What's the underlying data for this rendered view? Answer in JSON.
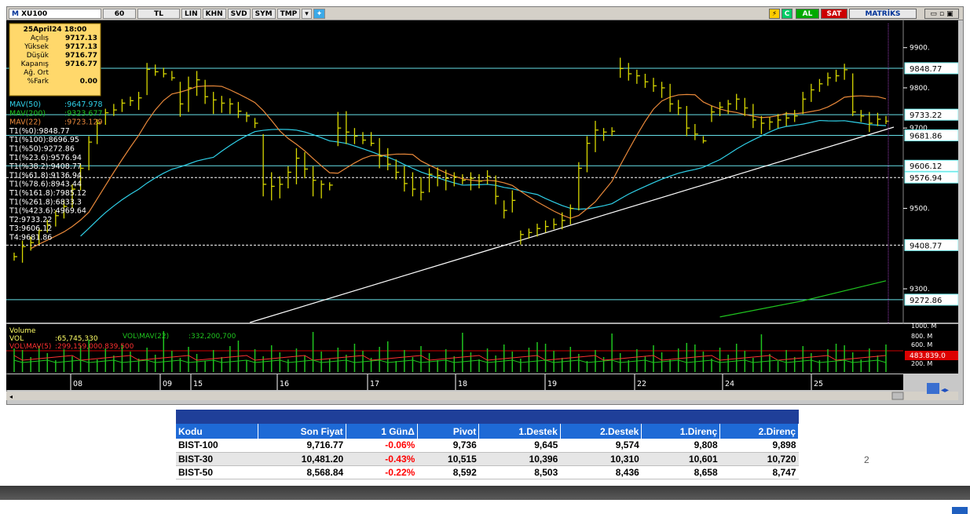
{
  "toolbar": {
    "symbol": "XU100",
    "period": "60",
    "unit": "TL",
    "buttons": [
      "LIN",
      "KHN",
      "SVD",
      "SYM",
      "TMP"
    ],
    "al": "AL",
    "sat": "SAT",
    "brand": "MATRİKS"
  },
  "info_box": {
    "date": "25April24 18:00",
    "rows": [
      {
        "label": "Açılış",
        "value": "9717.13"
      },
      {
        "label": "Yüksek",
        "value": "9717.13"
      },
      {
        "label": "Düşük",
        "value": "9716.77"
      },
      {
        "label": "Kapanış",
        "value": "9716.77"
      },
      {
        "label": "Ağ. Ort",
        "value": ""
      },
      {
        "label": "%Fark",
        "value": "0.00"
      }
    ]
  },
  "indicators": [
    {
      "text": "MAV(50)",
      "value": ":9647.978",
      "color": "#2fd0e8"
    },
    {
      "text": "MAV(200)",
      "value": ":9323.677",
      "color": "#1fc41f"
    },
    {
      "text": "MAV(22)",
      "value": ":9723.129",
      "color": "#e8883a"
    },
    {
      "text": "T1(%0):9848.77",
      "value": "",
      "color": "#ffffff"
    },
    {
      "text": "T1(%100):8696.95",
      "value": "",
      "color": "#ffffff"
    },
    {
      "text": "T1(%50):9272.86",
      "value": "",
      "color": "#ffffff"
    },
    {
      "text": "T1(%23.6):9576.94",
      "value": "",
      "color": "#ffffff"
    },
    {
      "text": "T1(%38.2):9408.77",
      "value": "",
      "color": "#ffffff"
    },
    {
      "text": "T1(%61.8):9136.94",
      "value": "",
      "color": "#ffffff"
    },
    {
      "text": "T1(%78.6):8943.44",
      "value": "",
      "color": "#ffffff"
    },
    {
      "text": "T1(%161.8):7985.12",
      "value": "",
      "color": "#ffffff"
    },
    {
      "text": "T1(%261.8):6833.3",
      "value": "",
      "color": "#ffffff"
    },
    {
      "text": "T1(%423.6):4969.64",
      "value": "",
      "color": "#ffffff"
    },
    {
      "text": "T2:9733.22",
      "value": "",
      "color": "#ffffff"
    },
    {
      "text": "T3:9606.12",
      "value": "",
      "color": "#ffffff"
    },
    {
      "text": "T4:9681.86",
      "value": "",
      "color": "#ffffff"
    }
  ],
  "price_axis_labels": [
    "9900.",
    "9800.",
    "9700.",
    "9500.",
    "9300."
  ],
  "price_axis_values": [
    9900,
    9800,
    9700,
    9500,
    9300
  ],
  "price_tags": [
    {
      "label": "9848.77",
      "value": 9848.77
    },
    {
      "label": "9733.22",
      "value": 9733.22
    },
    {
      "label": "9681.86",
      "value": 9681.86
    },
    {
      "label": "9606.12",
      "value": 9606.12
    },
    {
      "label": "9576.94",
      "value": 9576.94
    },
    {
      "label": "9408.77",
      "value": 9408.77
    },
    {
      "label": "9272.86",
      "value": 9272.86
    }
  ],
  "volume_panel": {
    "title": "Volume",
    "vol_label": "VOL",
    "vol_value": ":65,745,330",
    "volmav22_label": "VOL\\MAV(22)",
    "volmav22_value": ":332,200,700",
    "volmav5_label": "VOL\\MAV(5)",
    "volmav5_value": ":299,159,000.839,500",
    "axis_labels": [
      "1000. M",
      "800. M",
      "600. M",
      "200. M"
    ],
    "tag": "483.839.0"
  },
  "date_axis": [
    "08",
    "09",
    "15",
    "16",
    "17",
    "18",
    "19",
    "22",
    "24",
    "25"
  ],
  "colors": {
    "background": "#000000",
    "candle": "#d8d800",
    "mav50": "#2fd0e8",
    "mav200": "#1fc41f",
    "mav22": "#e8883a",
    "fib_line": "#66e0e8",
    "trendline": "#ffffff",
    "tag_bg": "#7fffff",
    "info_bg": "#ffd86b"
  },
  "chart_data": {
    "type": "candlestick",
    "title": "XU100",
    "ylim": [
      9220,
      9960
    ],
    "x_labels": [
      "08",
      "09",
      "15",
      "16",
      "17",
      "18",
      "19",
      "22",
      "24",
      "25"
    ],
    "bars": [
      {
        "h": 9390,
        "l": 9370,
        "c": 9380
      },
      {
        "h": 9420,
        "l": 9365,
        "c": 9405
      },
      {
        "h": 9430,
        "l": 9395,
        "c": 9415
      },
      {
        "h": 9450,
        "l": 9410,
        "c": 9445
      },
      {
        "h": 9472,
        "l": 9440,
        "c": 9460
      },
      {
        "h": 9495,
        "l": 9455,
        "c": 9482
      },
      {
        "h": 9520,
        "l": 9475,
        "c": 9505
      },
      {
        "h": 9560,
        "l": 9500,
        "c": 9548
      },
      {
        "h": 9610,
        "l": 9545,
        "c": 9600
      },
      {
        "h": 9680,
        "l": 9595,
        "c": 9665
      },
      {
        "h": 9722,
        "l": 9660,
        "c": 9712
      },
      {
        "h": 9748,
        "l": 9708,
        "c": 9738
      },
      {
        "h": 9760,
        "l": 9730,
        "c": 9745
      },
      {
        "h": 9772,
        "l": 9740,
        "c": 9762
      },
      {
        "h": 9778,
        "l": 9755,
        "c": 9768
      },
      {
        "h": 9790,
        "l": 9745,
        "c": 9775
      },
      {
        "h": 9862,
        "l": 9782,
        "c": 9846
      },
      {
        "h": 9858,
        "l": 9830,
        "c": 9840
      },
      {
        "h": 9850,
        "l": 9826,
        "c": 9835
      },
      {
        "h": 9842,
        "l": 9818,
        "c": 9825
      },
      {
        "h": 9815,
        "l": 9728,
        "c": 9760
      },
      {
        "h": 9828,
        "l": 9740,
        "c": 9800
      },
      {
        "h": 9842,
        "l": 9780,
        "c": 9820
      },
      {
        "h": 9820,
        "l": 9760,
        "c": 9778
      },
      {
        "h": 9790,
        "l": 9735,
        "c": 9770
      },
      {
        "h": 9780,
        "l": 9738,
        "c": 9762
      },
      {
        "h": 9774,
        "l": 9735,
        "c": 9760
      },
      {
        "h": 9765,
        "l": 9725,
        "c": 9742
      },
      {
        "h": 9740,
        "l": 9715,
        "c": 9730
      },
      {
        "h": 9725,
        "l": 9700,
        "c": 9712
      },
      {
        "h": 9685,
        "l": 9530,
        "c": 9560
      },
      {
        "h": 9590,
        "l": 9520,
        "c": 9555
      },
      {
        "h": 9580,
        "l": 9525,
        "c": 9560
      },
      {
        "h": 9605,
        "l": 9550,
        "c": 9590
      },
      {
        "h": 9650,
        "l": 9560,
        "c": 9625
      },
      {
        "h": 9640,
        "l": 9575,
        "c": 9598
      },
      {
        "h": 9605,
        "l": 9530,
        "c": 9570
      },
      {
        "h": 9570,
        "l": 9525,
        "c": 9560
      },
      {
        "h": 9565,
        "l": 9545,
        "c": 9558
      },
      {
        "h": 9740,
        "l": 9655,
        "c": 9700
      },
      {
        "h": 9742,
        "l": 9660,
        "c": 9690
      },
      {
        "h": 9700,
        "l": 9660,
        "c": 9680
      },
      {
        "h": 9690,
        "l": 9660,
        "c": 9670
      },
      {
        "h": 9690,
        "l": 9655,
        "c": 9662
      },
      {
        "h": 9675,
        "l": 9600,
        "c": 9630
      },
      {
        "h": 9650,
        "l": 9595,
        "c": 9610
      },
      {
        "h": 9622,
        "l": 9572,
        "c": 9590
      },
      {
        "h": 9605,
        "l": 9542,
        "c": 9562
      },
      {
        "h": 9590,
        "l": 9530,
        "c": 9548
      },
      {
        "h": 9578,
        "l": 9520,
        "c": 9540
      },
      {
        "h": 9600,
        "l": 9540,
        "c": 9585
      },
      {
        "h": 9602,
        "l": 9555,
        "c": 9582
      },
      {
        "h": 9596,
        "l": 9545,
        "c": 9575
      },
      {
        "h": 9590,
        "l": 9555,
        "c": 9578
      },
      {
        "h": 9585,
        "l": 9560,
        "c": 9570
      },
      {
        "h": 9590,
        "l": 9545,
        "c": 9575
      },
      {
        "h": 9585,
        "l": 9550,
        "c": 9568
      },
      {
        "h": 9595,
        "l": 9560,
        "c": 9580
      },
      {
        "h": 9582,
        "l": 9510,
        "c": 9530
      },
      {
        "h": 9520,
        "l": 9475,
        "c": 9495
      },
      {
        "h": 9545,
        "l": 9490,
        "c": 9520
      },
      {
        "h": 9445,
        "l": 9410,
        "c": 9435
      },
      {
        "h": 9450,
        "l": 9425,
        "c": 9440
      },
      {
        "h": 9462,
        "l": 9430,
        "c": 9450
      },
      {
        "h": 9470,
        "l": 9440,
        "c": 9455
      },
      {
        "h": 9475,
        "l": 9448,
        "c": 9460
      },
      {
        "h": 9490,
        "l": 9448,
        "c": 9470
      },
      {
        "h": 9510,
        "l": 9460,
        "c": 9500
      },
      {
        "h": 9615,
        "l": 9495,
        "c": 9600
      },
      {
        "h": 9680,
        "l": 9590,
        "c": 9662
      },
      {
        "h": 9718,
        "l": 9640,
        "c": 9695
      },
      {
        "h": 9700,
        "l": 9668,
        "c": 9690
      },
      {
        "h": 9702,
        "l": 9680,
        "c": 9692
      },
      {
        "h": 9875,
        "l": 9825,
        "c": 9848
      },
      {
        "h": 9862,
        "l": 9818,
        "c": 9835
      },
      {
        "h": 9845,
        "l": 9810,
        "c": 9830
      },
      {
        "h": 9835,
        "l": 9800,
        "c": 9815
      },
      {
        "h": 9825,
        "l": 9790,
        "c": 9805
      },
      {
        "h": 9815,
        "l": 9775,
        "c": 9800
      },
      {
        "h": 9810,
        "l": 9740,
        "c": 9760
      },
      {
        "h": 9770,
        "l": 9732,
        "c": 9750
      },
      {
        "h": 9755,
        "l": 9680,
        "c": 9700
      },
      {
        "h": 9710,
        "l": 9670,
        "c": 9685
      },
      {
        "h": 9680,
        "l": 9662,
        "c": 9668
      },
      {
        "h": 9755,
        "l": 9715,
        "c": 9740
      },
      {
        "h": 9765,
        "l": 9730,
        "c": 9752
      },
      {
        "h": 9770,
        "l": 9735,
        "c": 9760
      },
      {
        "h": 9785,
        "l": 9745,
        "c": 9772
      },
      {
        "h": 9775,
        "l": 9730,
        "c": 9750
      },
      {
        "h": 9760,
        "l": 9700,
        "c": 9720
      },
      {
        "h": 9730,
        "l": 9685,
        "c": 9712
      },
      {
        "h": 9728,
        "l": 9695,
        "c": 9715
      },
      {
        "h": 9735,
        "l": 9700,
        "c": 9720
      },
      {
        "h": 9740,
        "l": 9705,
        "c": 9725
      },
      {
        "h": 9745,
        "l": 9715,
        "c": 9730
      },
      {
        "h": 9790,
        "l": 9735,
        "c": 9772
      },
      {
        "h": 9810,
        "l": 9765,
        "c": 9795
      },
      {
        "h": 9822,
        "l": 9790,
        "c": 9810
      },
      {
        "h": 9838,
        "l": 9805,
        "c": 9825
      },
      {
        "h": 9845,
        "l": 9815,
        "c": 9830
      },
      {
        "h": 9860,
        "l": 9820,
        "c": 9845
      },
      {
        "h": 9836,
        "l": 9730,
        "c": 9740
      },
      {
        "h": 9745,
        "l": 9715,
        "c": 9730
      },
      {
        "h": 9740,
        "l": 9690,
        "c": 9712
      },
      {
        "h": 9738,
        "l": 9705,
        "c": 9722
      },
      {
        "h": 9730,
        "l": 9710,
        "c": 9717
      }
    ]
  },
  "table": {
    "headers": [
      "Kodu",
      "Son Fiyat",
      "1 GünΔ",
      "Pivot",
      "1.Destek",
      "2.Destek",
      "1.Direnç",
      "2.Direnç"
    ],
    "rows": [
      [
        "BIST-100",
        "9,716.77",
        "-0.06%",
        "9,736",
        "9,645",
        "9,574",
        "9,808",
        "9,898"
      ],
      [
        "BIST-30",
        "10,481.20",
        "-0.43%",
        "10,515",
        "10,396",
        "10,310",
        "10,601",
        "10,720"
      ],
      [
        "BIST-50",
        "8,568.84",
        "-0.22%",
        "8,592",
        "8,503",
        "8,436",
        "8,658",
        "8,747"
      ]
    ]
  },
  "page_number": "2"
}
